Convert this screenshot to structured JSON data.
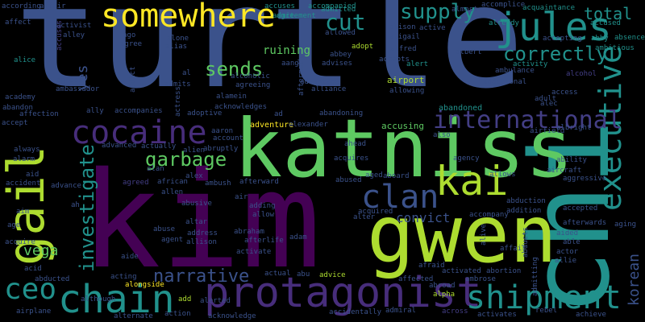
{
  "words": {
    "turtle": "turtle",
    "chi": "chi",
    "kim": "kim",
    "katniss": "katniss",
    "gwen": "gwen",
    "somewhere": "somewhere",
    "gail": "gail",
    "cocaine": "cocaine",
    "protagonist": "protagonist",
    "chain": "chain",
    "ceo": "ceo",
    "executive": "executive",
    "kai": "kai",
    "clan": "clan",
    "shipment": "shipment",
    "international": "international",
    "jules": "jules",
    "supply": "supply",
    "cut": "cut",
    "correctly": "correctly",
    "total": "total",
    "sends": "sends",
    "garbage": "garbage",
    "investigate": "investigate",
    "narrative": "narrative",
    "convict": "convict",
    "vega": "vega",
    "yes": "yes",
    "korean": "korean",
    "ruining": "ruining",
    "airport": "airport",
    "adventure": "adventure",
    "accusing": "accusing",
    "abandoned": "abandoned",
    "according": "according",
    "affair": "affair",
    "accuses": "accuses",
    "accompanied": "accompanied",
    "accomplice": "accomplice",
    "acquaintance": "acquaintance",
    "affect": "affect",
    "activist": "activist",
    "agreement": "agreement",
    "admit": "admit",
    "admitted": "admitted",
    "almost": "almost",
    "accused": "accused",
    "alley": "alley",
    "ago": "ago",
    "alone": "alone",
    "alias": "alias",
    "agree": "agree",
    "allowed": "allowed",
    "alison": "alison",
    "active": "active",
    "already": "already",
    "absence": "absence",
    "abigail": "abigail",
    "accepting": "accepting",
    "abby": "abby",
    "ambitious": "ambitious",
    "alfred": "alfred",
    "albert": "albert",
    "adopt": "adopt",
    "alice": "alice",
    "abbey": "abbey",
    "advises": "advises",
    "accepts": "accepts",
    "alert": "alert",
    "activity": "activity",
    "ambulance": "ambulance",
    "alcoholic": "alcoholic",
    "additional": "additional",
    "agrees": "agrees",
    "ambassador": "ambassador",
    "admits": "admits",
    "agreeing": "agreeing",
    "advantage": "advantage",
    "alliance": "alliance",
    "allowing": "allowing",
    "adult": "adult",
    "academy": "academy",
    "abandon": "abandon",
    "affection": "affection",
    "accept": "accept",
    "always": "always",
    "alarm": "alarm",
    "aid": "aid",
    "accident": "accident",
    "advance": "advance",
    "ah": "ah",
    "aim": "aim",
    "age": "age",
    "acquire": "acquire",
    "acid": "acid",
    "abducted": "abducted",
    "airplane": "airplane",
    "although": "although",
    "alternate": "alternate",
    "action": "action",
    "acknowledge": "acknowledge",
    "accidentally": "accidentally",
    "admiral": "admiral",
    "across": "across",
    "activates": "activates",
    "rebel": "rebel",
    "achieve": "achieve",
    "alamein": "alamein",
    "acknowledges": "acknowledges",
    "adoptive": "adoptive",
    "abandoning": "abandoning",
    "ally": "ally",
    "accompanies": "accompanies",
    "account": "account",
    "aaron": "aaron",
    "advanced": "advanced",
    "actually": "actually",
    "abruptly": "abruptly",
    "alien": "alien",
    "alan": "alan",
    "alex": "alex",
    "ambush": "ambush",
    "afterward": "afterward",
    "acquires": "acquires",
    "aboard": "aboard",
    "abused": "abused",
    "aged": "aged",
    "ahead": "ahead",
    "agency": "agency",
    "also": "also",
    "airfield": "airfield",
    "albright": "albright",
    "access": "access",
    "alec": "alec",
    "ability": "ability",
    "aircraft": "aircraft",
    "aggressive": "aggressive",
    "allows": "allows",
    "abduction": "abduction",
    "addition": "addition",
    "accepted": "accepted",
    "aging": "aging",
    "afterwards": "afterwards",
    "accompany": "accompany",
    "aided": "aided",
    "able": "able",
    "actor": "actor",
    "allie": "allie",
    "alive": "alive",
    "abducts": "abducts",
    "admitting": "admitting",
    "abortion": "abortion",
    "activated": "activated",
    "affair2": "affair",
    "abroad": "abroad",
    "alpha": "alpha",
    "ambrose": "ambrose",
    "afraid": "afraid",
    "affected": "affected",
    "actual": "actual",
    "abu": "abu",
    "advice": "advice",
    "adam": "adam",
    "afterlife": "afterlife",
    "activate": "activate",
    "abraham": "abraham",
    "allison": "allison",
    "address": "address",
    "agent": "agent",
    "altar": "altar",
    "abuse": "abuse",
    "abusive": "abusive",
    "allen": "allen",
    "african": "african",
    "agreed": "agreed",
    "air": "air",
    "adding": "adding",
    "allow": "allow",
    "acquired": "acquired",
    "alter": "alter",
    "aide": "aide",
    "acting": "acting",
    "alongside": "alongside",
    "alerted": "alerted",
    "add": "add",
    "alexander": "alexander",
    "ad": "ad",
    "aftermath": "aftermath",
    "actress": "actress",
    "addict": "addict",
    "aang": "aang",
    "al": "al",
    "alcohol": "alcohol",
    "accuses_l": "accuses"
  },
  "colors": {
    "background": "#000000",
    "navy": "#3b528b",
    "indigo": "#433e85",
    "purple": "#440154",
    "violet": "#472d7b",
    "teal": "#21918c",
    "green": "#5ec962",
    "lime": "#addc30",
    "yellow": "#fde725"
  }
}
